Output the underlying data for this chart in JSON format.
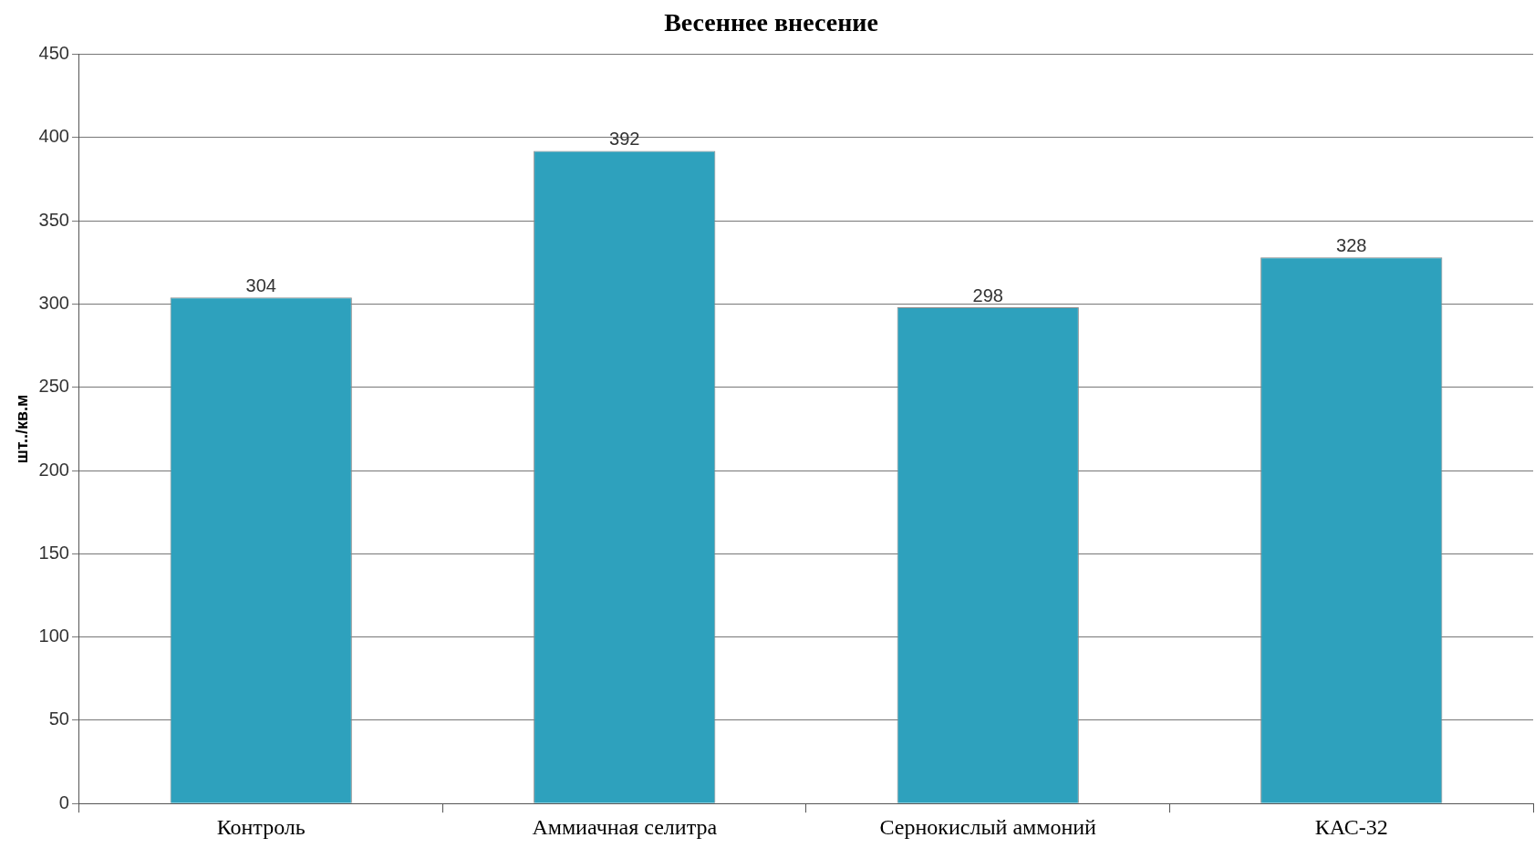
{
  "chart_data": {
    "type": "bar",
    "title": "Весеннее внесение",
    "ylabel": "шт../кв.м",
    "categories": [
      "Контроль",
      "Аммиачная селитра",
      "Сернокислый аммоний",
      "КАС-32"
    ],
    "values": [
      304,
      392,
      298,
      328
    ],
    "color": "#2ea1bd",
    "ylim": [
      0,
      450
    ],
    "yticks": [
      0,
      50,
      100,
      150,
      200,
      250,
      300,
      350,
      400,
      450
    ],
    "grid": "y",
    "data_labels": true,
    "legend": false
  }
}
